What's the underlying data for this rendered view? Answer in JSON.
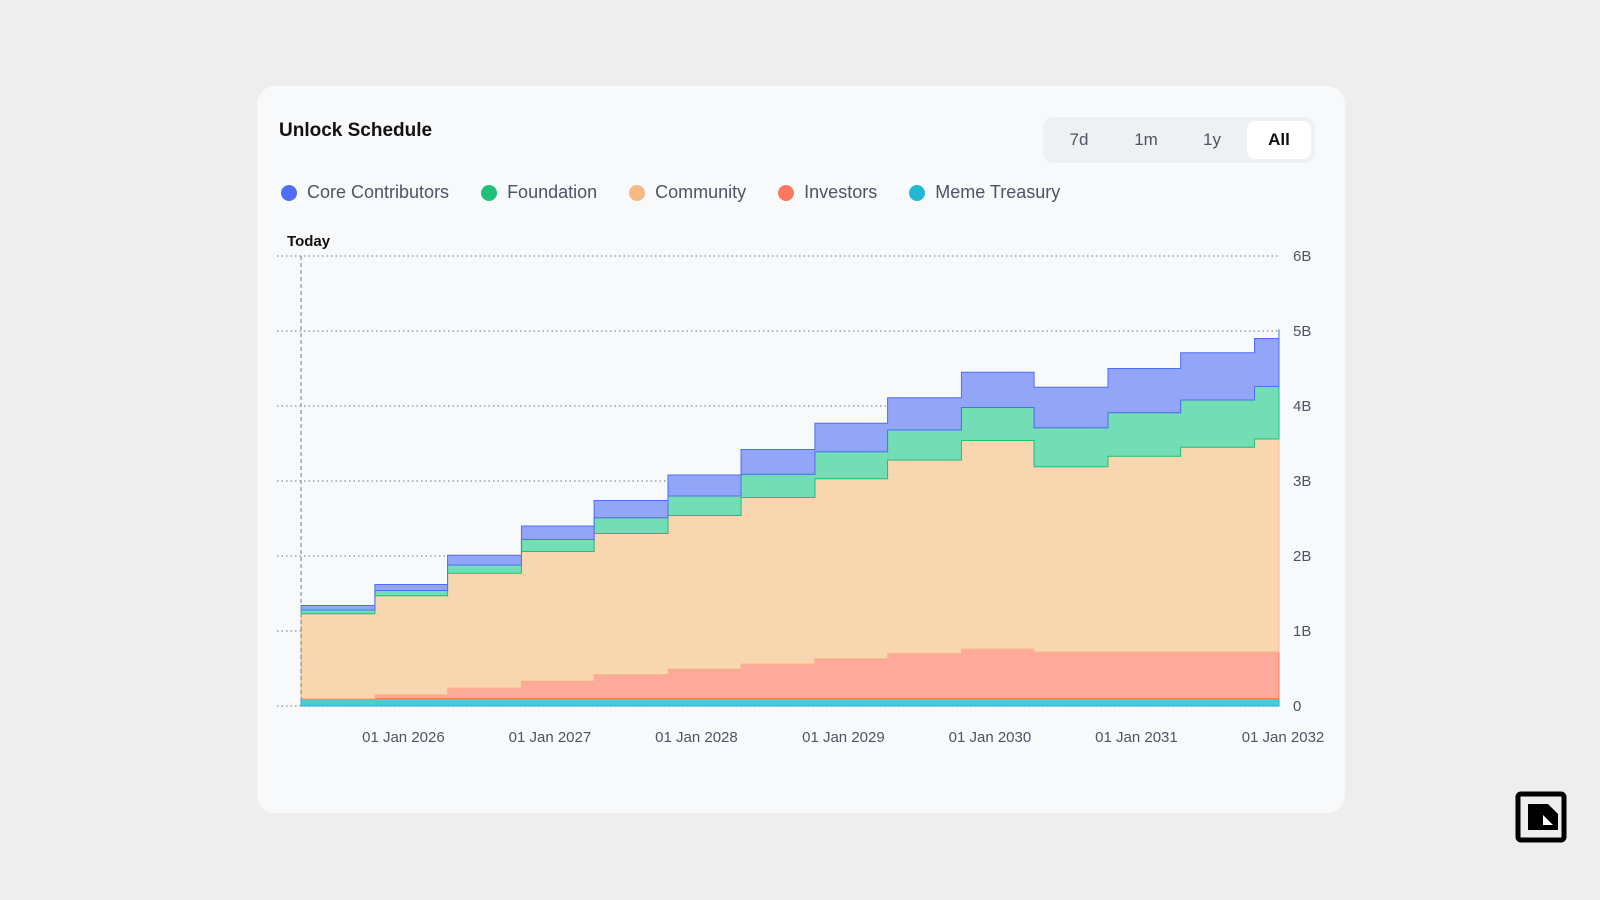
{
  "card": {
    "title": "Unlock Schedule",
    "range_buttons": [
      {
        "label": "7d",
        "active": false
      },
      {
        "label": "1m",
        "active": false
      },
      {
        "label": "1y",
        "active": false
      },
      {
        "label": "All",
        "active": true
      }
    ]
  },
  "colors": {
    "page_bg": "#eeeeee",
    "card_bg": "#f8f9fb"
  },
  "chart_data": {
    "type": "area",
    "stacking": "stacked",
    "step": true,
    "today_label": "Today",
    "today": "2025-05-01",
    "x_ticks": [
      "01 Jan 2026",
      "01 Jan 2027",
      "01 Jan 2028",
      "01 Jan 2029",
      "01 Jan 2030",
      "01 Jan 2031",
      "01 Jan 2032"
    ],
    "y_ticks": [
      "0",
      "1B",
      "2B",
      "3B",
      "4B",
      "5B",
      "6B"
    ],
    "ylim": [
      0,
      6000000000
    ],
    "xlim": [
      "2025-04-01",
      "2032-01-01"
    ],
    "grid": true,
    "legend_position": "top-left",
    "x": [
      "2025-05-01",
      "2025-11-01",
      "2026-05-01",
      "2026-11-01",
      "2027-05-01",
      "2027-11-01",
      "2028-05-01",
      "2028-11-01",
      "2029-05-01",
      "2029-11-01",
      "2030-05-01",
      "2030-11-01",
      "2031-05-01",
      "2031-11-01",
      "2032-01-01"
    ],
    "series": [
      {
        "name": "Meme Treasury",
        "color": "#21b8d4",
        "fill": "#4cc9dd",
        "values": [
          100000000,
          100000000,
          100000000,
          100000000,
          100000000,
          100000000,
          100000000,
          100000000,
          100000000,
          100000000,
          100000000,
          100000000,
          100000000,
          100000000,
          100000000
        ]
      },
      {
        "name": "Investors",
        "color": "#fb7a5d",
        "fill": "#fdaa9b",
        "values": [
          0,
          50000000,
          140000000,
          230000000,
          320000000,
          390000000,
          460000000,
          530000000,
          600000000,
          660000000,
          620000000,
          620000000,
          620000000,
          620000000,
          620000000
        ]
      },
      {
        "name": "Community",
        "color": "#f7b883",
        "fill": "#f8d6b0",
        "values": [
          1130000000,
          1320000000,
          1530000000,
          1730000000,
          1880000000,
          2050000000,
          2220000000,
          2400000000,
          2580000000,
          2780000000,
          2470000000,
          2610000000,
          2730000000,
          2840000000,
          2920000000
        ]
      },
      {
        "name": "Foundation",
        "color": "#1fc07a",
        "fill": "#73ddb5",
        "values": [
          50000000,
          70000000,
          110000000,
          160000000,
          210000000,
          260000000,
          310000000,
          360000000,
          400000000,
          440000000,
          520000000,
          580000000,
          630000000,
          700000000,
          740000000
        ]
      },
      {
        "name": "Core Contributors",
        "color": "#4d6ef5",
        "fill": "#93a5f7",
        "values": [
          60000000,
          80000000,
          130000000,
          180000000,
          230000000,
          280000000,
          330000000,
          380000000,
          430000000,
          470000000,
          540000000,
          590000000,
          630000000,
          640000000,
          640000000
        ]
      }
    ]
  }
}
